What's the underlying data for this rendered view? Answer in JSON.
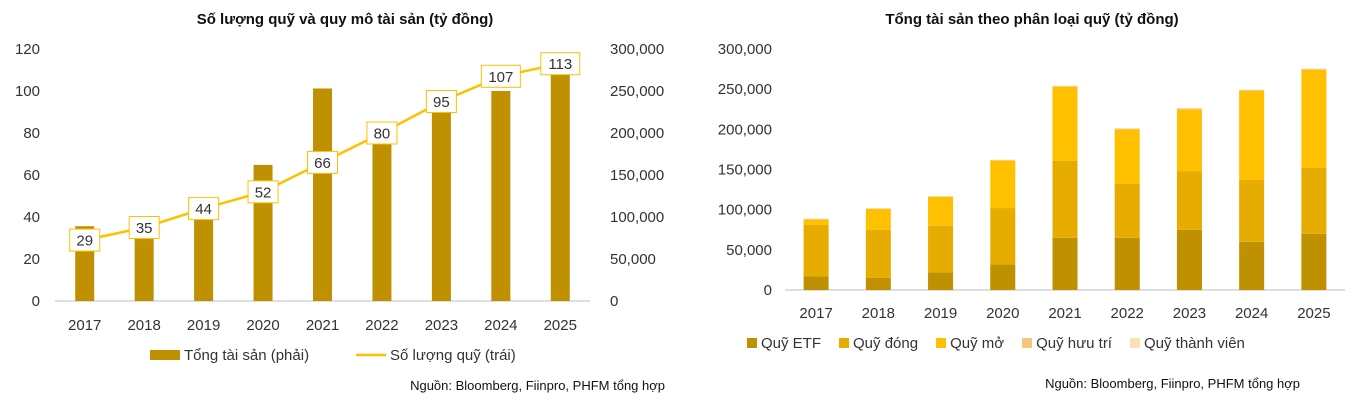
{
  "chart_data": [
    {
      "type": "bar+line",
      "title": "Số lượng quỹ và quy mô tài sản (tỷ đồng)",
      "categories": [
        "2017",
        "2018",
        "2019",
        "2020",
        "2021",
        "2022",
        "2023",
        "2024",
        "2025"
      ],
      "y_left": {
        "ylim": [
          0,
          120
        ],
        "ticks": [
          "0",
          "20",
          "40",
          "60",
          "80",
          "100",
          "120"
        ],
        "tick_values": [
          0,
          20,
          40,
          60,
          80,
          100,
          120
        ]
      },
      "y_right": {
        "ylim": [
          0,
          300000
        ],
        "ticks": [
          "0",
          "50,000",
          "100,000",
          "150,000",
          "200,000",
          "250,000",
          "300,000"
        ],
        "tick_values": [
          0,
          50000,
          100000,
          150000,
          200000,
          250000,
          300000
        ]
      },
      "series": [
        {
          "name": "Tổng tài sản (phải)",
          "type": "bar",
          "axis": "right",
          "color": "#BF9000",
          "values": [
            89000,
            75000,
            102000,
            162000,
            253000,
            200000,
            225000,
            250000,
            275000
          ]
        },
        {
          "name": "Số lượng quỹ (trái)",
          "type": "line",
          "axis": "left",
          "color": "#FFC000",
          "values": [
            29,
            35,
            44,
            52,
            66,
            80,
            95,
            107,
            113
          ],
          "labels": [
            "29",
            "35",
            "44",
            "52",
            "66",
            "80",
            "95",
            "107",
            "113"
          ]
        }
      ],
      "source": "Nguồn: Bloomberg, Fiinpro, PHFM tổng hợp"
    },
    {
      "type": "stacked-bar",
      "title": "Tổng tài sản theo phân loại quỹ (tỷ đồng)",
      "categories": [
        "2017",
        "2018",
        "2019",
        "2020",
        "2021",
        "2022",
        "2023",
        "2024",
        "2025"
      ],
      "ylim": [
        0,
        300000
      ],
      "ticks": [
        "0",
        "50,000",
        "100,000",
        "150,000",
        "200,000",
        "250,000",
        "300,000"
      ],
      "tick_values": [
        0,
        50000,
        100000,
        150000,
        200000,
        250000,
        300000
      ],
      "series": [
        {
          "name": "Quỹ ETF",
          "color": "#BF9000",
          "values": [
            17000,
            15000,
            22000,
            32000,
            65000,
            65000,
            75000,
            60000,
            70000
          ]
        },
        {
          "name": "Quỹ đóng",
          "color": "#E6AC00",
          "values": [
            64000,
            60000,
            58000,
            70000,
            96000,
            67000,
            73000,
            77000,
            82000
          ]
        },
        {
          "name": "Quỹ mở",
          "color": "#FFC000",
          "values": [
            7000,
            26000,
            36000,
            59000,
            92000,
            68000,
            77000,
            111000,
            122000
          ]
        },
        {
          "name": "Quỹ hưu trí",
          "color": "#F4C680",
          "values": [
            500,
            500,
            600,
            800,
            900,
            900,
            1000,
            1000,
            1200
          ]
        },
        {
          "name": "Quỹ thành viên",
          "color": "#FAE3B0",
          "values": [
            200,
            200,
            300,
            400,
            400,
            400,
            500,
            500,
            600
          ]
        }
      ],
      "source": "Nguồn: Bloomberg, Fiinpro, PHFM tổng hợp"
    }
  ]
}
